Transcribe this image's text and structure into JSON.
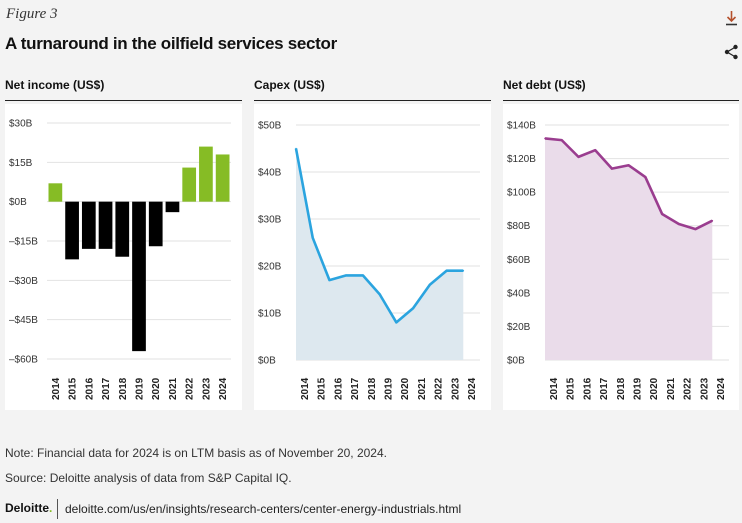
{
  "header": {
    "figure_label": "Figure 3",
    "title": "A turnaround in the oilfield services sector",
    "download_icon": "download-icon",
    "share_icon": "share-icon"
  },
  "colors": {
    "positive_bar": "#86bc25",
    "negative_bar": "#000000",
    "capex_line": "#2ba4df",
    "capex_fill": "#dde8ef",
    "debt_line": "#9a3d8f",
    "debt_fill": "#eadcea"
  },
  "chart_data": [
    {
      "type": "bar",
      "title": "Net income (US$)",
      "categories": [
        "2014",
        "2015",
        "2016",
        "2017",
        "2018",
        "2019",
        "2020",
        "2021",
        "2022",
        "2023",
        "2024"
      ],
      "values": [
        7,
        -22,
        -18,
        -18,
        -21,
        -57,
        -17,
        -4,
        13,
        21,
        18
      ],
      "y_ticks": [
        {
          "value": 30,
          "label": "$30B"
        },
        {
          "value": 15,
          "label": "$15B"
        },
        {
          "value": 0,
          "label": "$0B"
        },
        {
          "value": -15,
          "label": "–$15B"
        },
        {
          "value": -30,
          "label": "–$30B"
        },
        {
          "value": -45,
          "label": "–$45B"
        },
        {
          "value": -60,
          "label": "–$60B"
        }
      ],
      "ylim": [
        -60,
        30
      ],
      "grid": true
    },
    {
      "type": "area",
      "title": "Capex (US$)",
      "categories": [
        "2014",
        "2015",
        "2016",
        "2017",
        "2018",
        "2019",
        "2020",
        "2021",
        "2022",
        "2023",
        "2024"
      ],
      "values": [
        45,
        26,
        17,
        18,
        18,
        14,
        8,
        11,
        16,
        19,
        19
      ],
      "y_ticks": [
        {
          "value": 50,
          "label": "$50B"
        },
        {
          "value": 40,
          "label": "$40B"
        },
        {
          "value": 30,
          "label": "$30B"
        },
        {
          "value": 20,
          "label": "$20B"
        },
        {
          "value": 10,
          "label": "$10B"
        },
        {
          "value": 0,
          "label": "$0B"
        }
      ],
      "ylim": [
        0,
        50
      ],
      "grid": true
    },
    {
      "type": "area",
      "title": "Net debt (US$)",
      "categories": [
        "2014",
        "2015",
        "2016",
        "2017",
        "2018",
        "2019",
        "2020",
        "2021",
        "2022",
        "2023",
        "2024"
      ],
      "values": [
        132,
        131,
        121,
        125,
        114,
        116,
        109,
        87,
        81,
        78,
        83
      ],
      "y_ticks": [
        {
          "value": 140,
          "label": "$140B"
        },
        {
          "value": 120,
          "label": "$120B"
        },
        {
          "value": 100,
          "label": "$100B"
        },
        {
          "value": 80,
          "label": "$80B"
        },
        {
          "value": 60,
          "label": "$60B"
        },
        {
          "value": 40,
          "label": "$40B"
        },
        {
          "value": 20,
          "label": "$20B"
        },
        {
          "value": 0,
          "label": "$0B"
        }
      ],
      "ylim": [
        0,
        140
      ],
      "grid": true
    }
  ],
  "notes": {
    "note": "Note: Financial data for 2024 is on LTM basis as of November 20, 2024.",
    "source": "Source: Deloitte analysis of data from S&P Capital IQ."
  },
  "footer": {
    "logo_text": "Deloitte",
    "logo_dot": ".",
    "url": "deloitte.com/us/en/insights/research-centers/center-energy-industrials.html"
  }
}
